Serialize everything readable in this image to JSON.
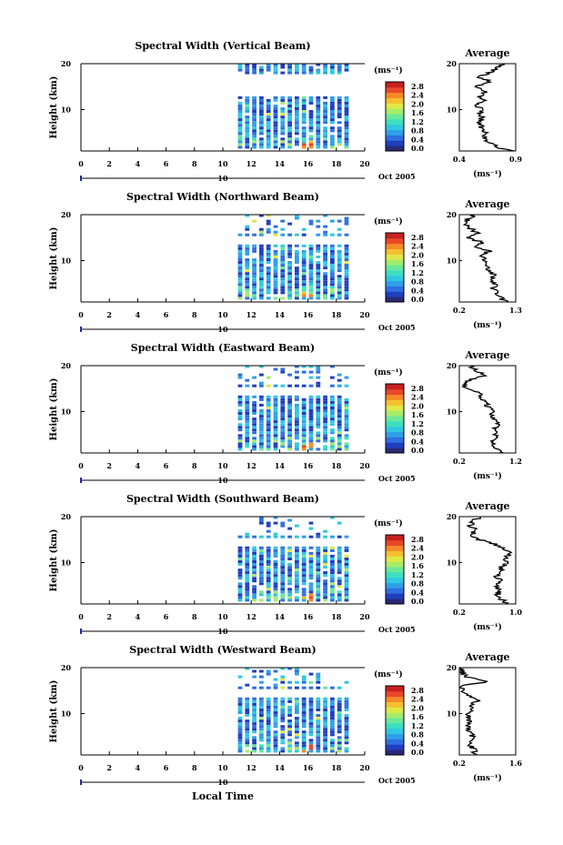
{
  "figure": {
    "date_label": "Oct 2005",
    "date_day_marker": "10",
    "x_axis_label": "Local Time",
    "y_axis_label": "Height (km)",
    "colorbar_unit": "(ms⁻¹)",
    "average_title": "Average",
    "average_unit": "(ms⁻¹)"
  },
  "colorbar": {
    "ticks": [
      "0.0",
      "0.4",
      "0.8",
      "1.2",
      "1.6",
      "2.0",
      "2.4",
      "2.8"
    ],
    "colors": [
      "#2a2a78",
      "#1f3fbf",
      "#2f6fe0",
      "#2f9fe8",
      "#2fc8e0",
      "#3ce0c0",
      "#6ae89a",
      "#a6ec6a",
      "#e0e848",
      "#f4c030",
      "#f48a28",
      "#e8482a",
      "#c82020"
    ]
  },
  "chart_data": [
    {
      "type": "heatmap",
      "title": "Spectral Width (Vertical Beam)",
      "x": {
        "label": "Local Time",
        "ticks": [
          0,
          2,
          4,
          6,
          8,
          10,
          12,
          14,
          16,
          18,
          20
        ],
        "range": [
          0,
          20
        ]
      },
      "y": {
        "label": "Height (km)",
        "ticks": [
          10,
          20
        ],
        "range": [
          1,
          20
        ]
      },
      "data_coverage_hours": [
        11,
        19
      ],
      "colorbar": {
        "unit": "(ms⁻¹)",
        "ticks": [
          0.0,
          0.4,
          0.8,
          1.2,
          1.6,
          2.0,
          2.4,
          2.8
        ]
      },
      "average_profile": {
        "title": "Average",
        "unit": "(ms⁻¹)",
        "xlim": [
          0.4,
          0.9
        ],
        "x_ticks": [
          "0.4",
          "0.9"
        ],
        "y_ticks": [
          10,
          20
        ],
        "heights": [
          1,
          2,
          3,
          4,
          5,
          6,
          7,
          8,
          9,
          10,
          11,
          12,
          13,
          14,
          15,
          16,
          17,
          18,
          19,
          20
        ],
        "values": [
          0.86,
          0.72,
          0.66,
          0.62,
          0.64,
          0.6,
          0.58,
          0.6,
          0.58,
          0.6,
          0.54,
          0.62,
          0.58,
          0.64,
          0.52,
          0.7,
          0.58,
          0.66,
          0.74,
          0.8
        ]
      }
    },
    {
      "type": "heatmap",
      "title": "Spectral Width (Northward Beam)",
      "x": {
        "label": "Local Time",
        "ticks": [
          0,
          2,
          4,
          6,
          8,
          10,
          12,
          14,
          16,
          18,
          20
        ],
        "range": [
          0,
          20
        ]
      },
      "y": {
        "label": "Height (km)",
        "ticks": [
          10,
          20
        ],
        "range": [
          1,
          20
        ]
      },
      "data_coverage_hours": [
        11,
        19
      ],
      "colorbar": {
        "unit": "(ms⁻¹)",
        "ticks": [
          0.0,
          0.4,
          0.8,
          1.2,
          1.6,
          2.0,
          2.4,
          2.8
        ]
      },
      "average_profile": {
        "title": "Average",
        "unit": "(ms⁻¹)",
        "xlim": [
          0.2,
          1.3
        ],
        "x_ticks": [
          "0.2",
          "1.3"
        ],
        "y_ticks": [
          10,
          20
        ],
        "heights": [
          1,
          2,
          3,
          4,
          5,
          6,
          7,
          8,
          9,
          10,
          11,
          12,
          13,
          14,
          15,
          16,
          17,
          18,
          19,
          20
        ],
        "values": [
          1.1,
          1.0,
          0.92,
          0.86,
          0.9,
          0.82,
          0.86,
          0.78,
          0.74,
          0.7,
          0.62,
          0.78,
          0.5,
          0.66,
          0.32,
          0.56,
          0.42,
          0.3,
          0.36,
          0.5
        ]
      }
    },
    {
      "type": "heatmap",
      "title": "Spectral Width (Eastward Beam)",
      "x": {
        "label": "Local Time",
        "ticks": [
          0,
          2,
          4,
          6,
          8,
          10,
          12,
          14,
          16,
          18,
          20
        ],
        "range": [
          0,
          20
        ]
      },
      "y": {
        "label": "Height (km)",
        "ticks": [
          10,
          20
        ],
        "range": [
          1,
          20
        ]
      },
      "data_coverage_hours": [
        11,
        19
      ],
      "colorbar": {
        "unit": "(ms⁻¹)",
        "ticks": [
          0.0,
          0.4,
          0.8,
          1.2,
          1.6,
          2.0,
          2.4,
          2.8
        ]
      },
      "average_profile": {
        "title": "Average",
        "unit": "(ms⁻¹)",
        "xlim": [
          0.2,
          1.2
        ],
        "x_ticks": [
          "0.2",
          "1.2"
        ],
        "y_ticks": [
          10,
          20
        ],
        "heights": [
          1,
          2,
          3,
          4,
          5,
          6,
          7,
          8,
          9,
          10,
          11,
          12,
          13,
          14,
          15,
          16,
          17,
          18,
          19,
          20
        ],
        "values": [
          0.92,
          0.86,
          0.82,
          0.8,
          0.86,
          0.82,
          0.9,
          0.84,
          0.78,
          0.8,
          0.7,
          0.72,
          0.52,
          0.56,
          0.34,
          0.3,
          0.42,
          0.66,
          0.5,
          0.4
        ]
      }
    },
    {
      "type": "heatmap",
      "title": "Spectral Width (Southward Beam)",
      "x": {
        "label": "Local Time",
        "ticks": [
          0,
          2,
          4,
          6,
          8,
          10,
          12,
          14,
          16,
          18,
          20
        ],
        "range": [
          0,
          20
        ]
      },
      "y": {
        "label": "Height (km)",
        "ticks": [
          10,
          20
        ],
        "range": [
          1,
          20
        ]
      },
      "data_coverage_hours": [
        11,
        19
      ],
      "colorbar": {
        "unit": "(ms⁻¹)",
        "ticks": [
          0.0,
          0.4,
          0.8,
          1.2,
          1.6,
          2.0,
          2.4,
          2.8
        ]
      },
      "average_profile": {
        "title": "Average",
        "unit": "(ms⁻¹)",
        "xlim": [
          0.2,
          1.0
        ],
        "x_ticks": [
          "0.2",
          "1.0"
        ],
        "y_ticks": [
          10,
          20
        ],
        "heights": [
          1,
          2,
          3,
          4,
          5,
          6,
          7,
          8,
          9,
          10,
          11,
          12,
          13,
          14,
          15,
          16,
          17,
          18,
          19,
          20
        ],
        "values": [
          0.86,
          0.8,
          0.74,
          0.76,
          0.72,
          0.78,
          0.74,
          0.82,
          0.78,
          0.86,
          0.84,
          0.94,
          0.82,
          0.7,
          0.48,
          0.36,
          0.44,
          0.34,
          0.4,
          0.5
        ]
      }
    },
    {
      "type": "heatmap",
      "title": "Spectral Width (Westward Beam)",
      "x": {
        "label": "Local Time",
        "ticks": [
          0,
          2,
          4,
          6,
          8,
          10,
          12,
          14,
          16,
          18,
          20
        ],
        "range": [
          0,
          20
        ]
      },
      "y": {
        "label": "Height (km)",
        "ticks": [
          10,
          20
        ],
        "range": [
          1,
          20
        ]
      },
      "data_coverage_hours": [
        11,
        19
      ],
      "colorbar": {
        "unit": "(ms⁻¹)",
        "ticks": [
          0.0,
          0.4,
          0.8,
          1.2,
          1.6,
          2.0,
          2.4,
          2.8
        ]
      },
      "average_profile": {
        "title": "Average",
        "unit": "(ms⁻¹)",
        "xlim": [
          0.2,
          1.6
        ],
        "x_ticks": [
          "0.2",
          "1.6"
        ],
        "y_ticks": [
          10,
          20
        ],
        "heights": [
          1,
          2,
          3,
          4,
          5,
          6,
          7,
          8,
          9,
          10,
          11,
          12,
          13,
          14,
          15,
          16,
          17,
          18,
          19,
          20
        ],
        "values": [
          0.62,
          0.56,
          0.5,
          0.48,
          0.52,
          0.46,
          0.44,
          0.42,
          0.46,
          0.4,
          0.48,
          0.52,
          0.7,
          0.44,
          0.3,
          0.26,
          0.9,
          0.34,
          0.28,
          0.24
        ]
      }
    }
  ]
}
